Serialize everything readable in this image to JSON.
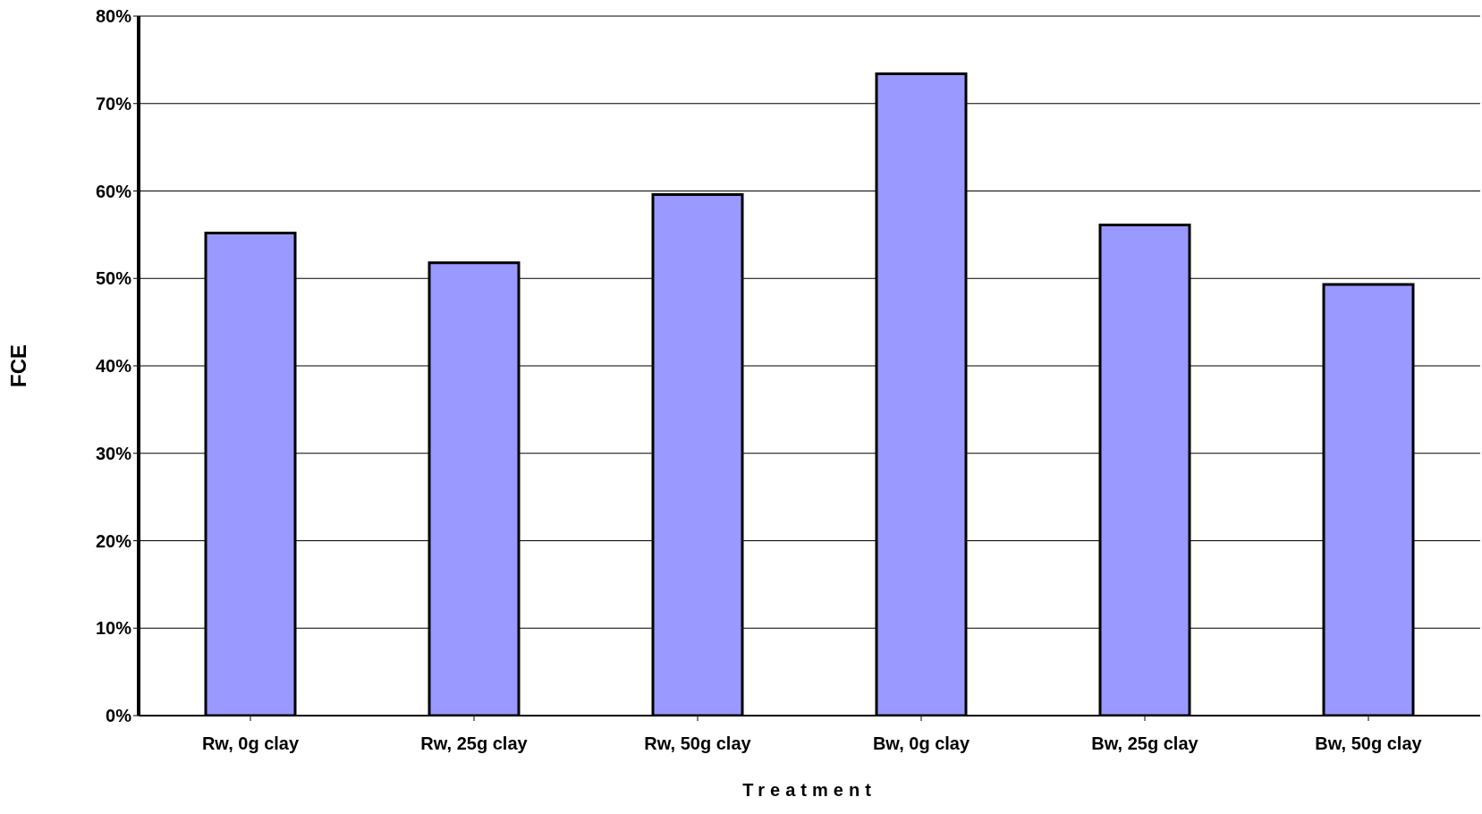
{
  "chart_data": {
    "type": "bar",
    "xlabel": "Treatment",
    "ylabel": "FCE",
    "categories": [
      "Rw, 0g clay",
      "Rw, 25g clay",
      "Rw, 50g clay",
      "Bw, 0g clay",
      "Bw, 25g clay",
      "Bw, 50g clay"
    ],
    "values": [
      55.2,
      51.8,
      59.6,
      73.4,
      56.1,
      49.3
    ],
    "color": "#9999ff",
    "ylim": [
      0,
      80
    ],
    "yticks": [
      {
        "value": 0,
        "label": "0%"
      },
      {
        "value": 10,
        "label": "10%"
      },
      {
        "value": 20,
        "label": "20%"
      },
      {
        "value": 30,
        "label": "30%"
      },
      {
        "value": 40,
        "label": "40%"
      },
      {
        "value": 50,
        "label": "50%"
      },
      {
        "value": 60,
        "label": "60%"
      },
      {
        "value": 70,
        "label": "70%"
      },
      {
        "value": 80,
        "label": "80%"
      }
    ],
    "grid": "y",
    "legend": false
  }
}
